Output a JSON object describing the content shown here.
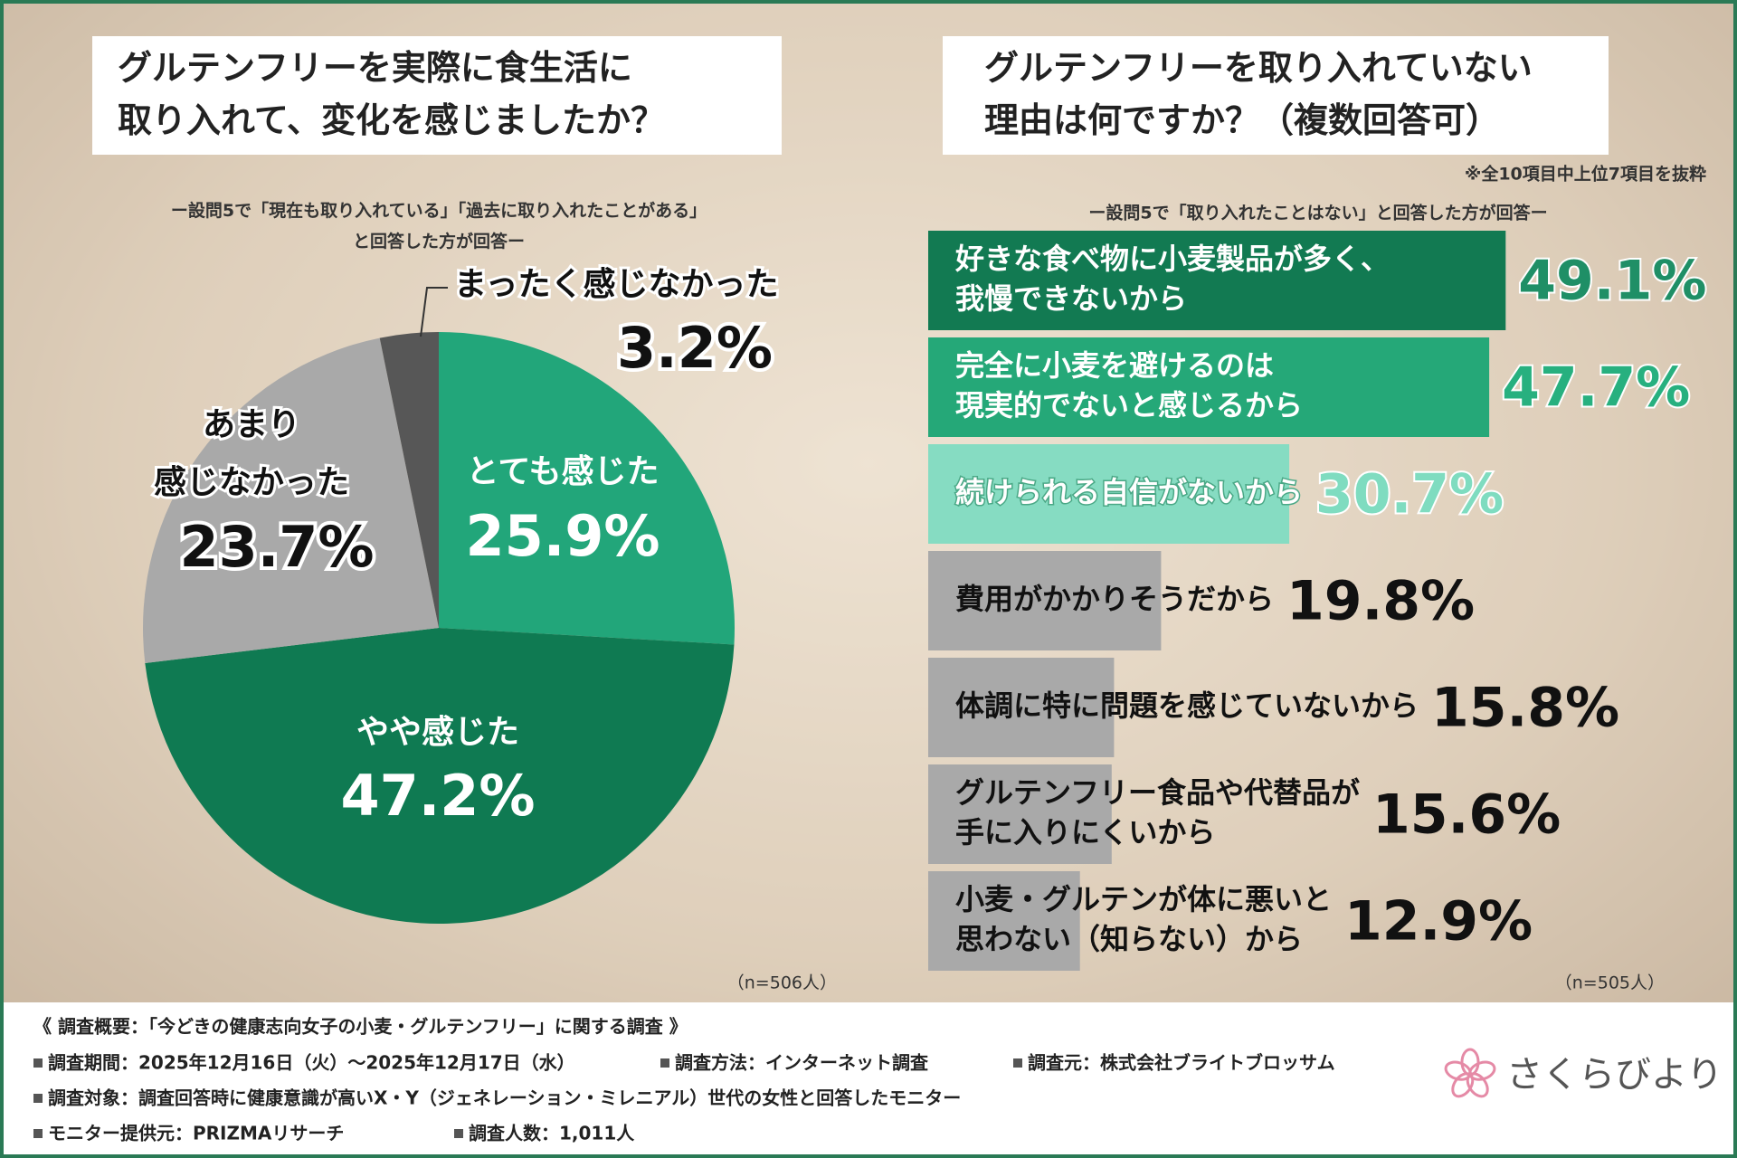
{
  "chart_data": [
    {
      "type": "pie",
      "title": "グルテンフリーを実際に食生活に\n取り入れて、変化を感じましたか？",
      "subtitle": "ー設問5で「現在も取り入れている」「過去に取り入れたことがある」\nと回答した方が回答ー",
      "categories": [
        "とても感じた",
        "やや感じた",
        "あまり\n感じなかった",
        "まったく感じなかった"
      ],
      "values": [
        25.9,
        47.2,
        23.7,
        3.2
      ],
      "value_labels": [
        "25.9%",
        "47.2%",
        "23.7%",
        "3.2%"
      ],
      "colors": [
        "#22a67a",
        "#0f7a52",
        "#a9a9a9",
        "#575757"
      ],
      "note": "（n=506人）"
    },
    {
      "type": "hbar",
      "title": "グルテンフリーを取り入れていない\n理由は何ですか？（複数回答可）",
      "subtitle": "ー設問5で「取り入れたことはない」と回答した方が回答ー",
      "annotation": "※全10項目中上位7項目を抜粋",
      "categories": [
        "好きな食べ物に小麦製品が多く、\n我慢できないから",
        "完全に小麦を避けるのは\n現実的でないと感じるから",
        "続けられる自信がないから",
        "費用がかかりそうだから",
        "体調に特に問題を感じていないから",
        "グルテンフリー食品や代替品が\n手に入りにくいから",
        "小麦・グルテンが体に悪いと\n思わない（知らない）から"
      ],
      "values": [
        49.1,
        47.7,
        30.7,
        19.8,
        15.8,
        15.6,
        12.9
      ],
      "value_labels": [
        "49.1%",
        "47.7%",
        "30.7%",
        "19.8%",
        "15.8%",
        "15.6%",
        "12.9%"
      ],
      "colors": [
        "#127a52",
        "#25a878",
        "#86dcc2",
        "#a9a9a9",
        "#a9a9a9",
        "#a9a9a9",
        "#a9a9a9"
      ],
      "note": "（n=505人）"
    }
  ],
  "footer": {
    "title": "《 調査概要：「今どきの健康志向女子の小麦・グルテンフリー」に関する調査 》",
    "items": [
      "調査期間：2025年12月16日（火）～2025年12月17日（水）",
      "調査方法：インターネット調査",
      "調査元：株式会社ブライトブロッサム",
      "調査対象：調査回答時に健康意識が高いX・Y（ジェネレーション・ミレニアル）世代の女性と回答したモニター",
      "モニター提供元：PRIZMAリサーチ",
      "調査人数：1,011人"
    ],
    "logo": "さくらびより"
  }
}
